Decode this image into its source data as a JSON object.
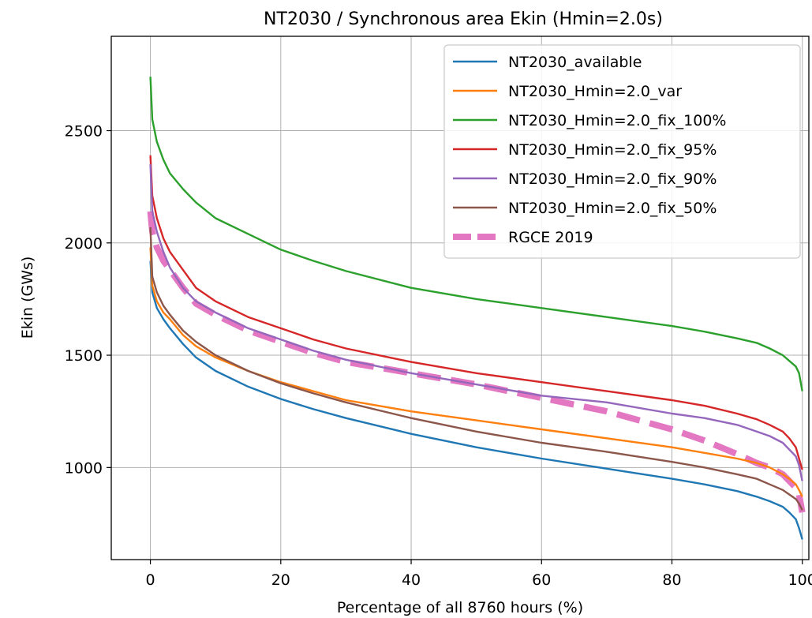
{
  "chart_data": {
    "type": "line",
    "title": "NT2030 / Synchronous area Ekin (Hmin=2.0s)",
    "xlabel": "Percentage of all 8760 hours (%)",
    "ylabel": "Ekin (GWs)",
    "xlim": [
      -6,
      101
    ],
    "ylim": [
      590,
      2920
    ],
    "xticks": [
      0,
      20,
      40,
      60,
      80,
      100
    ],
    "yticks": [
      1000,
      1500,
      2000,
      2500
    ],
    "xtick_labels": [
      "0",
      "20",
      "40",
      "60",
      "80",
      "100"
    ],
    "ytick_labels": [
      "1000",
      "1500",
      "2000",
      "2500"
    ],
    "grid": true,
    "legend_position": "top-right",
    "x": [
      0,
      0.3,
      1,
      2,
      3,
      5,
      7,
      10,
      15,
      20,
      25,
      30,
      40,
      50,
      60,
      70,
      80,
      85,
      90,
      93,
      95,
      97,
      98,
      99,
      99.5,
      100
    ],
    "series": [
      {
        "name": "NT2030_available",
        "color": "#1f77b4",
        "style": "solid",
        "values": [
          1920,
          1780,
          1710,
          1660,
          1620,
          1550,
          1490,
          1430,
          1360,
          1305,
          1260,
          1220,
          1150,
          1090,
          1040,
          995,
          950,
          925,
          895,
          870,
          850,
          825,
          800,
          770,
          730,
          680
        ]
      },
      {
        "name": "NT2030_Hmin=2.0_var",
        "color": "#ff7f0e",
        "style": "solid",
        "values": [
          1980,
          1810,
          1740,
          1690,
          1660,
          1590,
          1540,
          1490,
          1430,
          1380,
          1340,
          1300,
          1250,
          1210,
          1170,
          1130,
          1090,
          1065,
          1040,
          1020,
          1000,
          970,
          950,
          925,
          900,
          870
        ]
      },
      {
        "name": "NT2030_Hmin=2.0_fix_100%",
        "color": "#2ca02c",
        "style": "solid",
        "values": [
          2740,
          2550,
          2450,
          2370,
          2310,
          2240,
          2180,
          2110,
          2040,
          1970,
          1920,
          1875,
          1800,
          1750,
          1710,
          1670,
          1630,
          1605,
          1575,
          1555,
          1530,
          1500,
          1475,
          1450,
          1420,
          1340
        ]
      },
      {
        "name": "NT2030_Hmin=2.0_fix_95%",
        "color": "#d62728",
        "style": "solid",
        "values": [
          2390,
          2210,
          2110,
          2020,
          1960,
          1880,
          1800,
          1740,
          1670,
          1620,
          1570,
          1530,
          1470,
          1420,
          1380,
          1340,
          1300,
          1275,
          1240,
          1215,
          1190,
          1160,
          1130,
          1090,
          1040,
          990
        ]
      },
      {
        "name": "NT2030_Hmin=2.0_fix_90%",
        "color": "#9467bd",
        "style": "solid",
        "values": [
          2350,
          2140,
          2050,
          1960,
          1890,
          1800,
          1740,
          1690,
          1620,
          1570,
          1520,
          1480,
          1420,
          1370,
          1320,
          1290,
          1240,
          1220,
          1190,
          1160,
          1140,
          1110,
          1080,
          1050,
          1010,
          940
        ]
      },
      {
        "name": "NT2030_Hmin=2.0_fix_50%",
        "color": "#8c564b",
        "style": "solid",
        "values": [
          2070,
          1850,
          1780,
          1720,
          1680,
          1610,
          1560,
          1500,
          1430,
          1375,
          1330,
          1290,
          1220,
          1160,
          1110,
          1070,
          1025,
          1000,
          970,
          950,
          925,
          900,
          880,
          860,
          840,
          810
        ]
      },
      {
        "name": "RGCE 2019",
        "color": "#e377c2",
        "style": "dashed",
        "values": [
          2140,
          2050,
          1980,
          1920,
          1880,
          1800,
          1730,
          1680,
          1610,
          1560,
          1510,
          1470,
          1420,
          1370,
          1310,
          1250,
          1170,
          1120,
          1060,
          1020,
          1000,
          970,
          940,
          910,
          880,
          800
        ]
      }
    ]
  }
}
